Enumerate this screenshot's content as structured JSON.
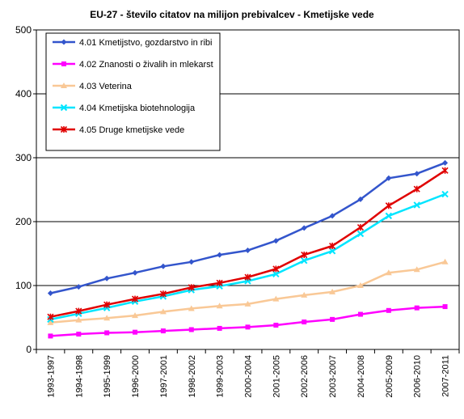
{
  "chart_data": {
    "type": "line",
    "title": "EU-27 - število citatov na milijon prebivalcev - Kmetijske vede",
    "xlabel": "",
    "ylabel": "",
    "ylim": [
      0,
      500
    ],
    "yticks": [
      0,
      100,
      200,
      300,
      400,
      500
    ],
    "grid": "horizontal",
    "legend_position": "top-left",
    "categories": [
      "1993-1997",
      "1994-1998",
      "1995-1999",
      "1996-2000",
      "1997-2001",
      "1998-2002",
      "1999-2003",
      "2000-2004",
      "2001-2005",
      "2002-2006",
      "2003-2007",
      "2004-2008",
      "2005-2009",
      "2006-2010",
      "2007-2011"
    ],
    "series": [
      {
        "name": "4.01 Kmetijstvo, gozdarstvo in ribi",
        "color": "#3355CC",
        "marker": "diamond",
        "values": [
          88,
          98,
          111,
          120,
          130,
          137,
          148,
          155,
          170,
          190,
          209,
          235,
          268,
          275,
          292
        ]
      },
      {
        "name": "4.02 Znanosti o živalih in mlekarst",
        "color": "#FF00FF",
        "marker": "square",
        "values": [
          21,
          24,
          26,
          27,
          29,
          31,
          33,
          35,
          38,
          43,
          47,
          55,
          61,
          65,
          67
        ]
      },
      {
        "name": "4.03 Veterina",
        "color": "#F9C896",
        "marker": "triangle",
        "values": [
          42,
          46,
          49,
          53,
          59,
          64,
          68,
          71,
          79,
          85,
          90,
          100,
          120,
          125,
          137
        ]
      },
      {
        "name": "4.04 Kmetijska biotehnologija",
        "color": "#00E5FF",
        "marker": "x",
        "values": [
          47,
          56,
          65,
          75,
          83,
          93,
          99,
          107,
          118,
          139,
          154,
          181,
          209,
          226,
          243
        ]
      },
      {
        "name": "4.05 Druge kmetijske vede",
        "color": "#E00000",
        "marker": "star",
        "values": [
          51,
          60,
          70,
          79,
          87,
          97,
          104,
          113,
          126,
          148,
          162,
          191,
          225,
          251,
          280
        ]
      }
    ]
  }
}
